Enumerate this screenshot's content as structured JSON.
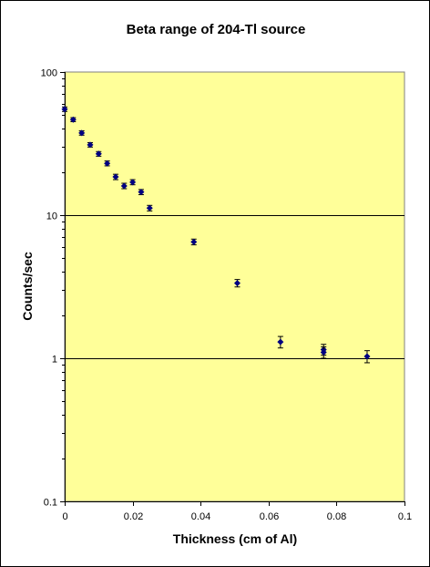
{
  "chart_data": {
    "type": "scatter",
    "title": "Beta range of 204-Tl source",
    "xlabel": "Thickness (cm of Al)",
    "ylabel": "Counts/sec",
    "xlim": [
      0,
      0.1
    ],
    "ylim": [
      0.1,
      100
    ],
    "y_scale": "log",
    "x_ticks": [
      0,
      0.02,
      0.04,
      0.06,
      0.08,
      0.1
    ],
    "x_tick_labels": [
      "0",
      "0.02",
      "0.04",
      "0.06",
      "0.08",
      "0.1"
    ],
    "y_ticks": [
      0.1,
      1,
      10,
      100
    ],
    "y_tick_labels": [
      "0.1",
      "1",
      "10",
      "100"
    ],
    "grid": "horizontal major lines",
    "plot_background": "#FFFF99",
    "marker_color": "#000080",
    "points": [
      {
        "x": 0.0,
        "y": 55,
        "err": 2
      },
      {
        "x": 0.0025,
        "y": 46.5,
        "err": 1.5
      },
      {
        "x": 0.005,
        "y": 37.5,
        "err": 1.3
      },
      {
        "x": 0.0075,
        "y": 31,
        "err": 1.1
      },
      {
        "x": 0.01,
        "y": 26.8,
        "err": 1
      },
      {
        "x": 0.0125,
        "y": 23,
        "err": 0.9
      },
      {
        "x": 0.015,
        "y": 18.5,
        "err": 0.8
      },
      {
        "x": 0.0175,
        "y": 16,
        "err": 0.7
      },
      {
        "x": 0.02,
        "y": 17,
        "err": 0.7
      },
      {
        "x": 0.0225,
        "y": 14.5,
        "err": 0.6
      },
      {
        "x": 0.025,
        "y": 11.2,
        "err": 0.5
      },
      {
        "x": 0.038,
        "y": 6.5,
        "err": 0.3
      },
      {
        "x": 0.0508,
        "y": 3.35,
        "err": 0.2
      },
      {
        "x": 0.0635,
        "y": 1.3,
        "err": 0.12
      },
      {
        "x": 0.0762,
        "y": 1.15,
        "err": 0.1
      },
      {
        "x": 0.0762,
        "y": 1.1,
        "err": 0.1
      },
      {
        "x": 0.089,
        "y": 1.03,
        "err": 0.1
      }
    ]
  }
}
